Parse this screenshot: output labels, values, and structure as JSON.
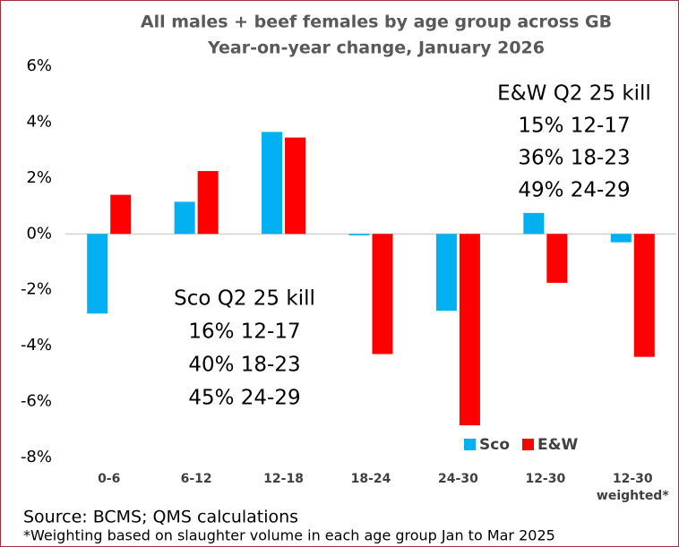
{
  "chart_data": {
    "type": "bar",
    "title": "All males + beef females by age group across GB",
    "subtitle": "Year-on-year change, January 2026",
    "categories": [
      "0-6",
      "6-12",
      "12-18",
      "18-24",
      "24-30",
      "12-30",
      "12-30 weighted*"
    ],
    "series": [
      {
        "name": "Sco",
        "color": "#00B0F0",
        "values": [
          -2.85,
          1.15,
          3.65,
          -0.05,
          -2.75,
          0.75,
          -0.3
        ]
      },
      {
        "name": "E&W",
        "color": "#FF0000",
        "values": [
          1.4,
          2.25,
          3.45,
          -4.3,
          -6.85,
          -1.75,
          -4.4
        ]
      }
    ],
    "ylim": [
      -8,
      6
    ],
    "yticks": [
      {
        "value": -8,
        "label": "-8%"
      },
      {
        "value": -6,
        "label": "-6%"
      },
      {
        "value": -4,
        "label": "-4%"
      },
      {
        "value": -2,
        "label": "-2%"
      },
      {
        "value": 0,
        "label": "0%"
      },
      {
        "value": 2,
        "label": "2%"
      },
      {
        "value": 4,
        "label": "4%"
      },
      {
        "value": 6,
        "label": "6%"
      }
    ],
    "grid": false,
    "legend": "bottom-right",
    "annotations": [
      {
        "lines": [
          "E&W Q2 25 kill",
          "15% 12-17",
          "36% 18-23",
          "49% 24-29"
        ]
      },
      {
        "lines": [
          "Sco Q2 25 kill",
          "16% 12-17",
          "40% 18-23",
          "45% 24-29"
        ]
      }
    ],
    "source": "Source: BCMS; QMS calculations",
    "footnote": "*Weighting based on slaughter volume in each age group Jan to Mar 2025"
  }
}
